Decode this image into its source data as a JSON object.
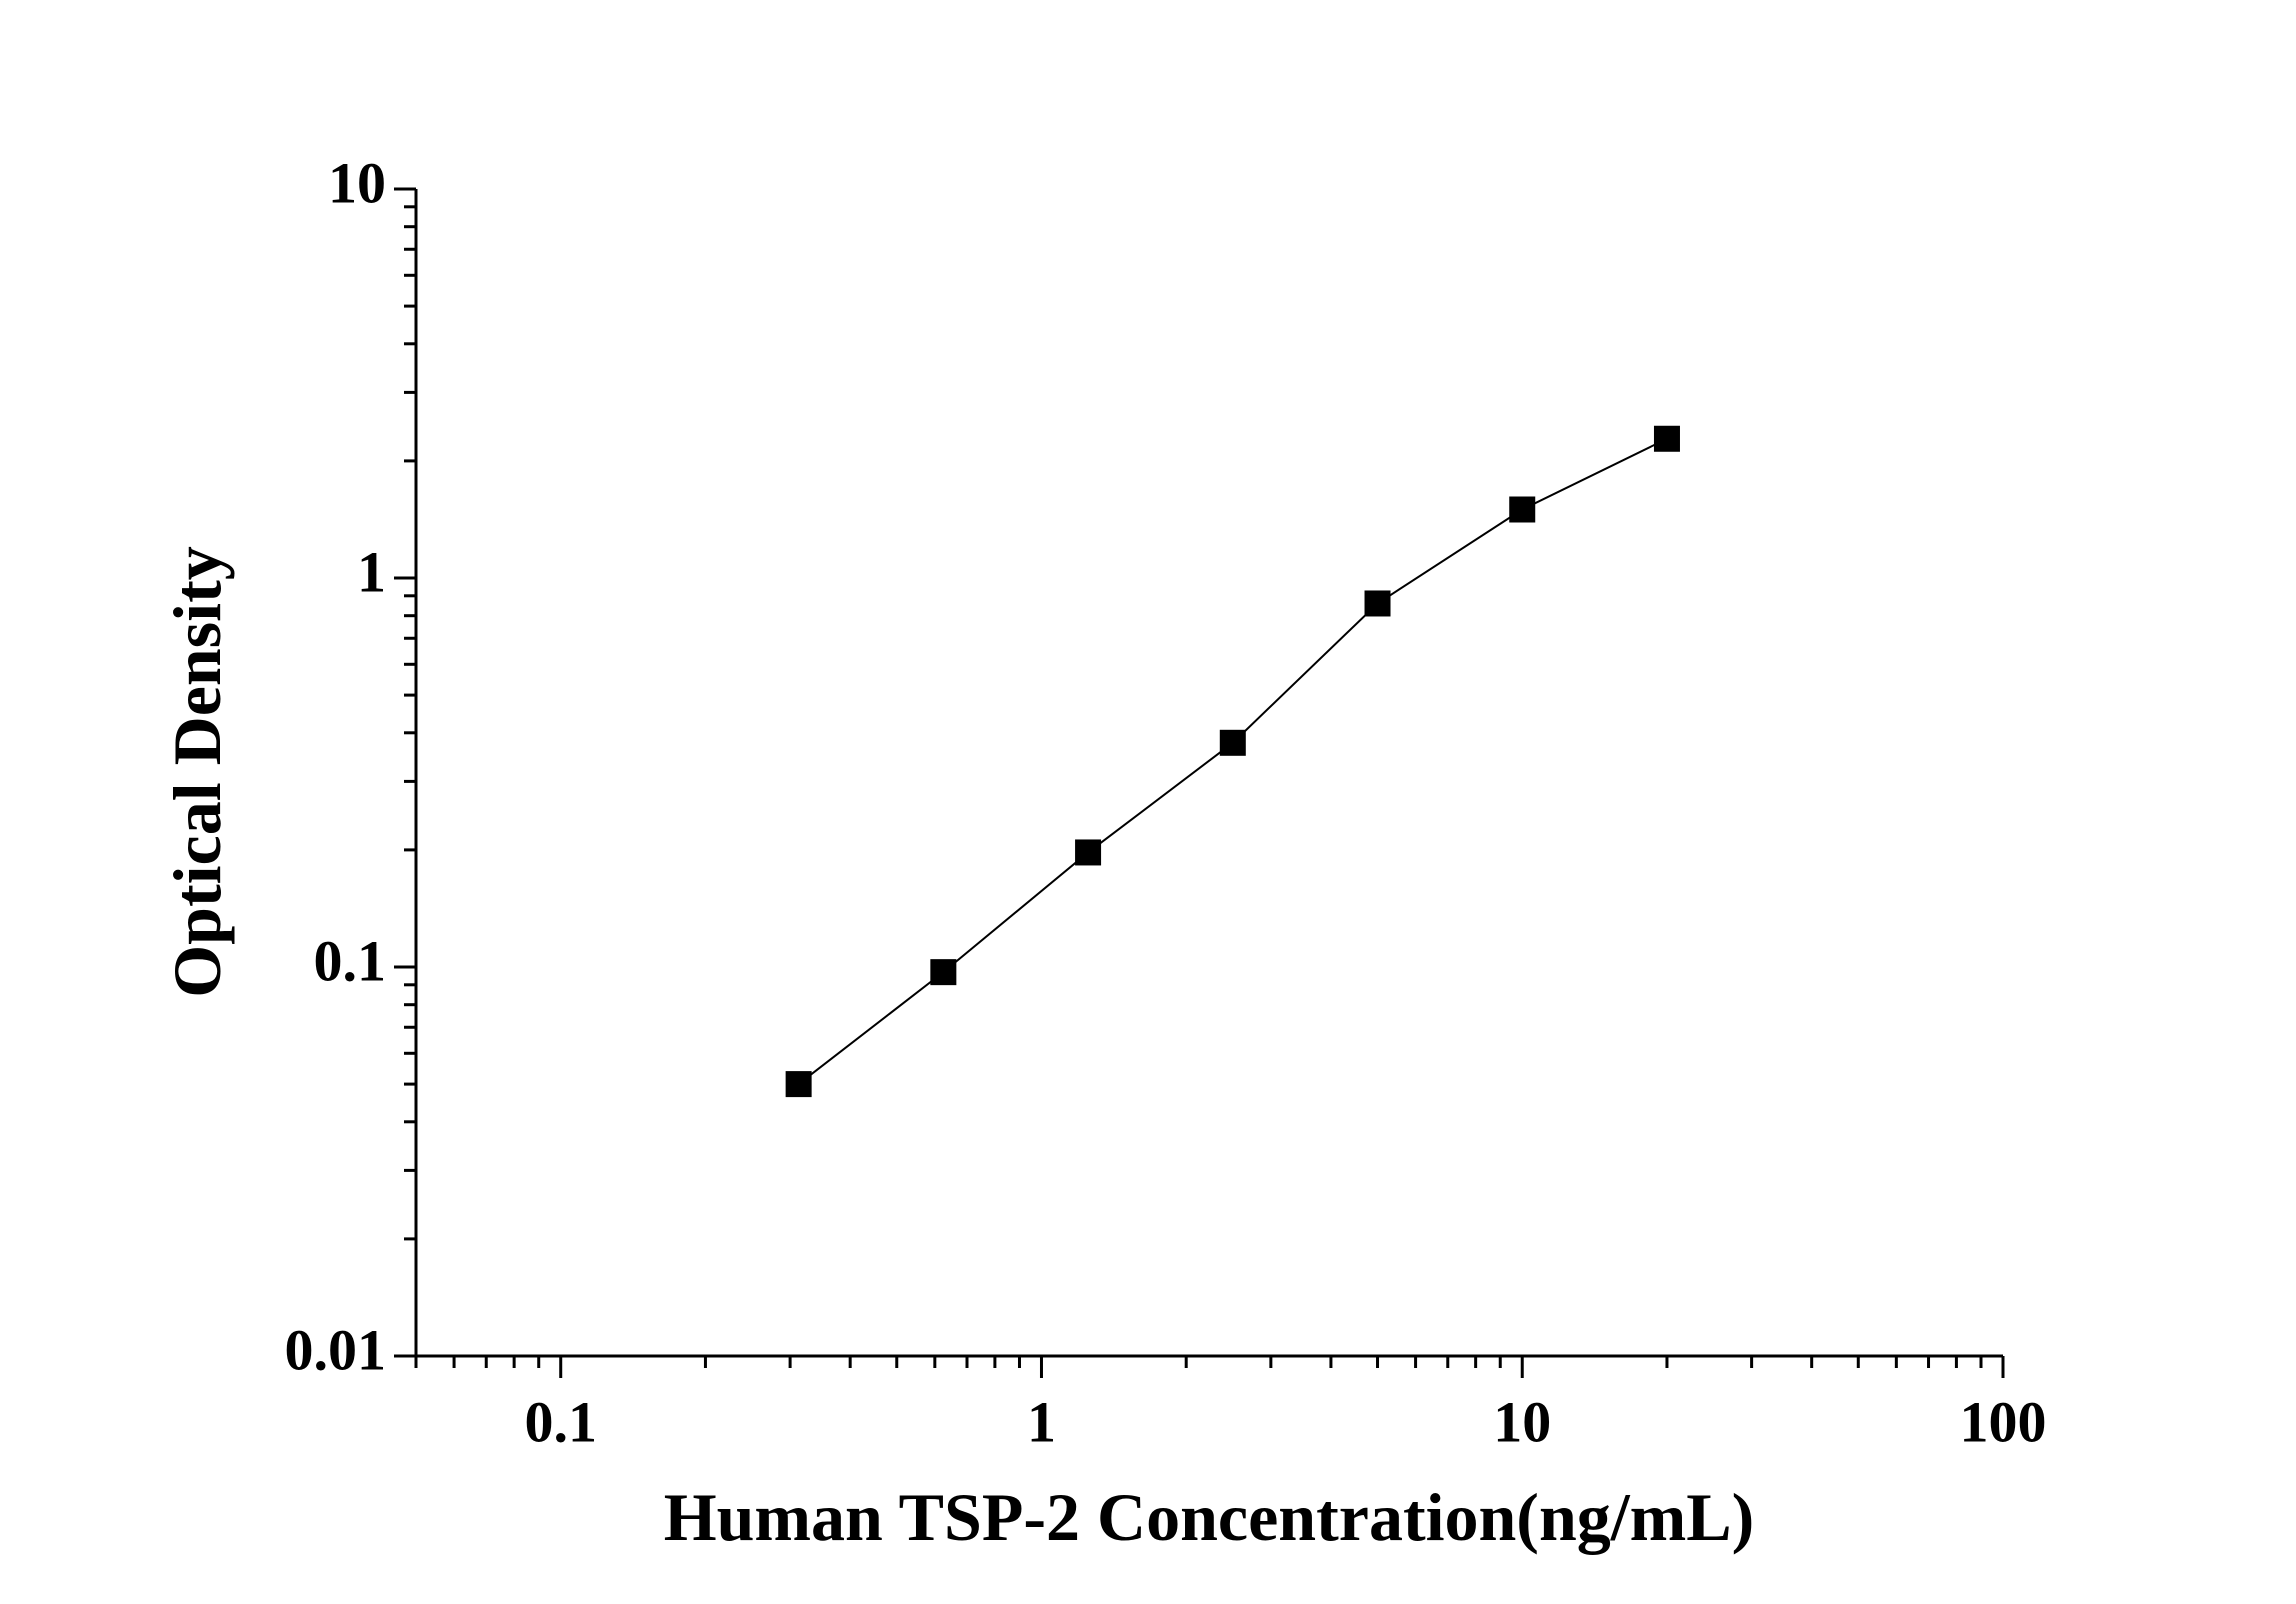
{
  "chart_data": {
    "type": "line",
    "x_label": "Human TSP-2 Concentration(ng/mL)",
    "y_label": "Optical Density",
    "x": [
      0.3125,
      0.625,
      1.25,
      2.5,
      5,
      10,
      20
    ],
    "series": [
      {
        "color": "#000000",
        "values": [
          0.05,
          0.097,
          0.197,
          0.377,
          0.86,
          1.5,
          2.28
        ]
      }
    ],
    "xlim": [
      0.05,
      100
    ],
    "ylim": [
      0.01,
      10
    ],
    "xticks": [
      0.1,
      1,
      10,
      100
    ],
    "yticks": [
      0.01,
      0.1,
      1,
      10
    ],
    "xscale": "log",
    "yscale": "log",
    "marker": "square",
    "grid": false
  }
}
